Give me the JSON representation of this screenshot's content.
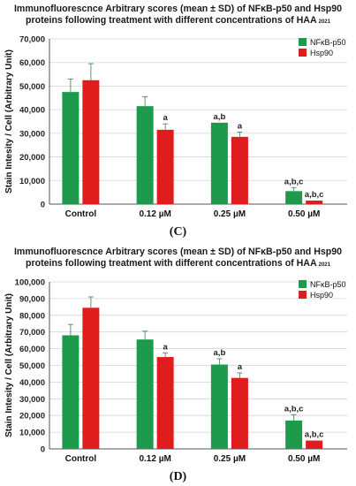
{
  "chart_data": [
    {
      "type": "bar",
      "panel_label": "(C)",
      "title_line1": "Immunofluorescnce Arbitrary scores (mean ± SD) of NFκB-p50 and Hsp90",
      "title_line2": "proteins following treatment with different concentrations of HAA",
      "title_subscript": "2021",
      "ylabel": "Stain Intesity / Cell (Arbitrary Unit)",
      "xlabel": "",
      "ylim": [
        0,
        70000
      ],
      "yticks": [
        0,
        10000,
        20000,
        30000,
        40000,
        50000,
        60000,
        70000
      ],
      "ytick_labels": [
        "0",
        "10,000",
        "20,000",
        "30,000",
        "40,000",
        "50,000",
        "60,000",
        "70,000"
      ],
      "categories": [
        "Control",
        "0.12 µM",
        "0.25 µM",
        "0.50 µM"
      ],
      "grid": true,
      "legend_position": "top-right",
      "series": [
        {
          "name": "NFκB-p50",
          "color": "#1e9a4c",
          "values": [
            47500,
            41500,
            34500,
            5500
          ],
          "errors": [
            5500,
            4000,
            0,
            1500
          ],
          "labels": [
            "",
            "",
            "a,b",
            "a,b,c"
          ]
        },
        {
          "name": "Hsp90",
          "color": "#e01d1d",
          "values": [
            52500,
            31500,
            28500,
            1500
          ],
          "errors": [
            7000,
            2500,
            2000,
            0
          ],
          "labels": [
            "",
            "a",
            "a",
            "a,b,c"
          ]
        }
      ]
    },
    {
      "type": "bar",
      "panel_label": "(D)",
      "title_line1": "Immunofluorescnce Arbitrary scores (mean ± SD) of NFκB-p50 and Hsp90",
      "title_line2": "proteins following treatment with different concentrations of HAA",
      "title_subscript": "2021",
      "ylabel": "Stain Intesity / Cell (Arbitrary Unit)",
      "xlabel": "",
      "ylim": [
        0,
        100000
      ],
      "yticks": [
        0,
        10000,
        20000,
        30000,
        40000,
        50000,
        60000,
        70000,
        80000,
        90000,
        100000
      ],
      "ytick_labels": [
        "0",
        "10,000",
        "20,000",
        "30,000",
        "40,000",
        "50,000",
        "60,000",
        "70,000",
        "80,000",
        "90,000",
        "100,000"
      ],
      "categories": [
        "Control",
        "0.12 µM",
        "0.25 µM",
        "0.50 µM"
      ],
      "grid": true,
      "legend_position": "top-right",
      "series": [
        {
          "name": "NFκB-p50",
          "color": "#1e9a4c",
          "values": [
            68000,
            65500,
            50500,
            17000
          ],
          "errors": [
            6500,
            5000,
            3500,
            3500
          ],
          "labels": [
            "",
            "",
            "a,b",
            "a,b,c"
          ]
        },
        {
          "name": "Hsp90",
          "color": "#e01d1d",
          "values": [
            84500,
            55000,
            42500,
            5000
          ],
          "errors": [
            6500,
            2500,
            3000,
            0
          ],
          "labels": [
            "",
            "a",
            "a",
            "a,b,c"
          ]
        }
      ]
    }
  ]
}
